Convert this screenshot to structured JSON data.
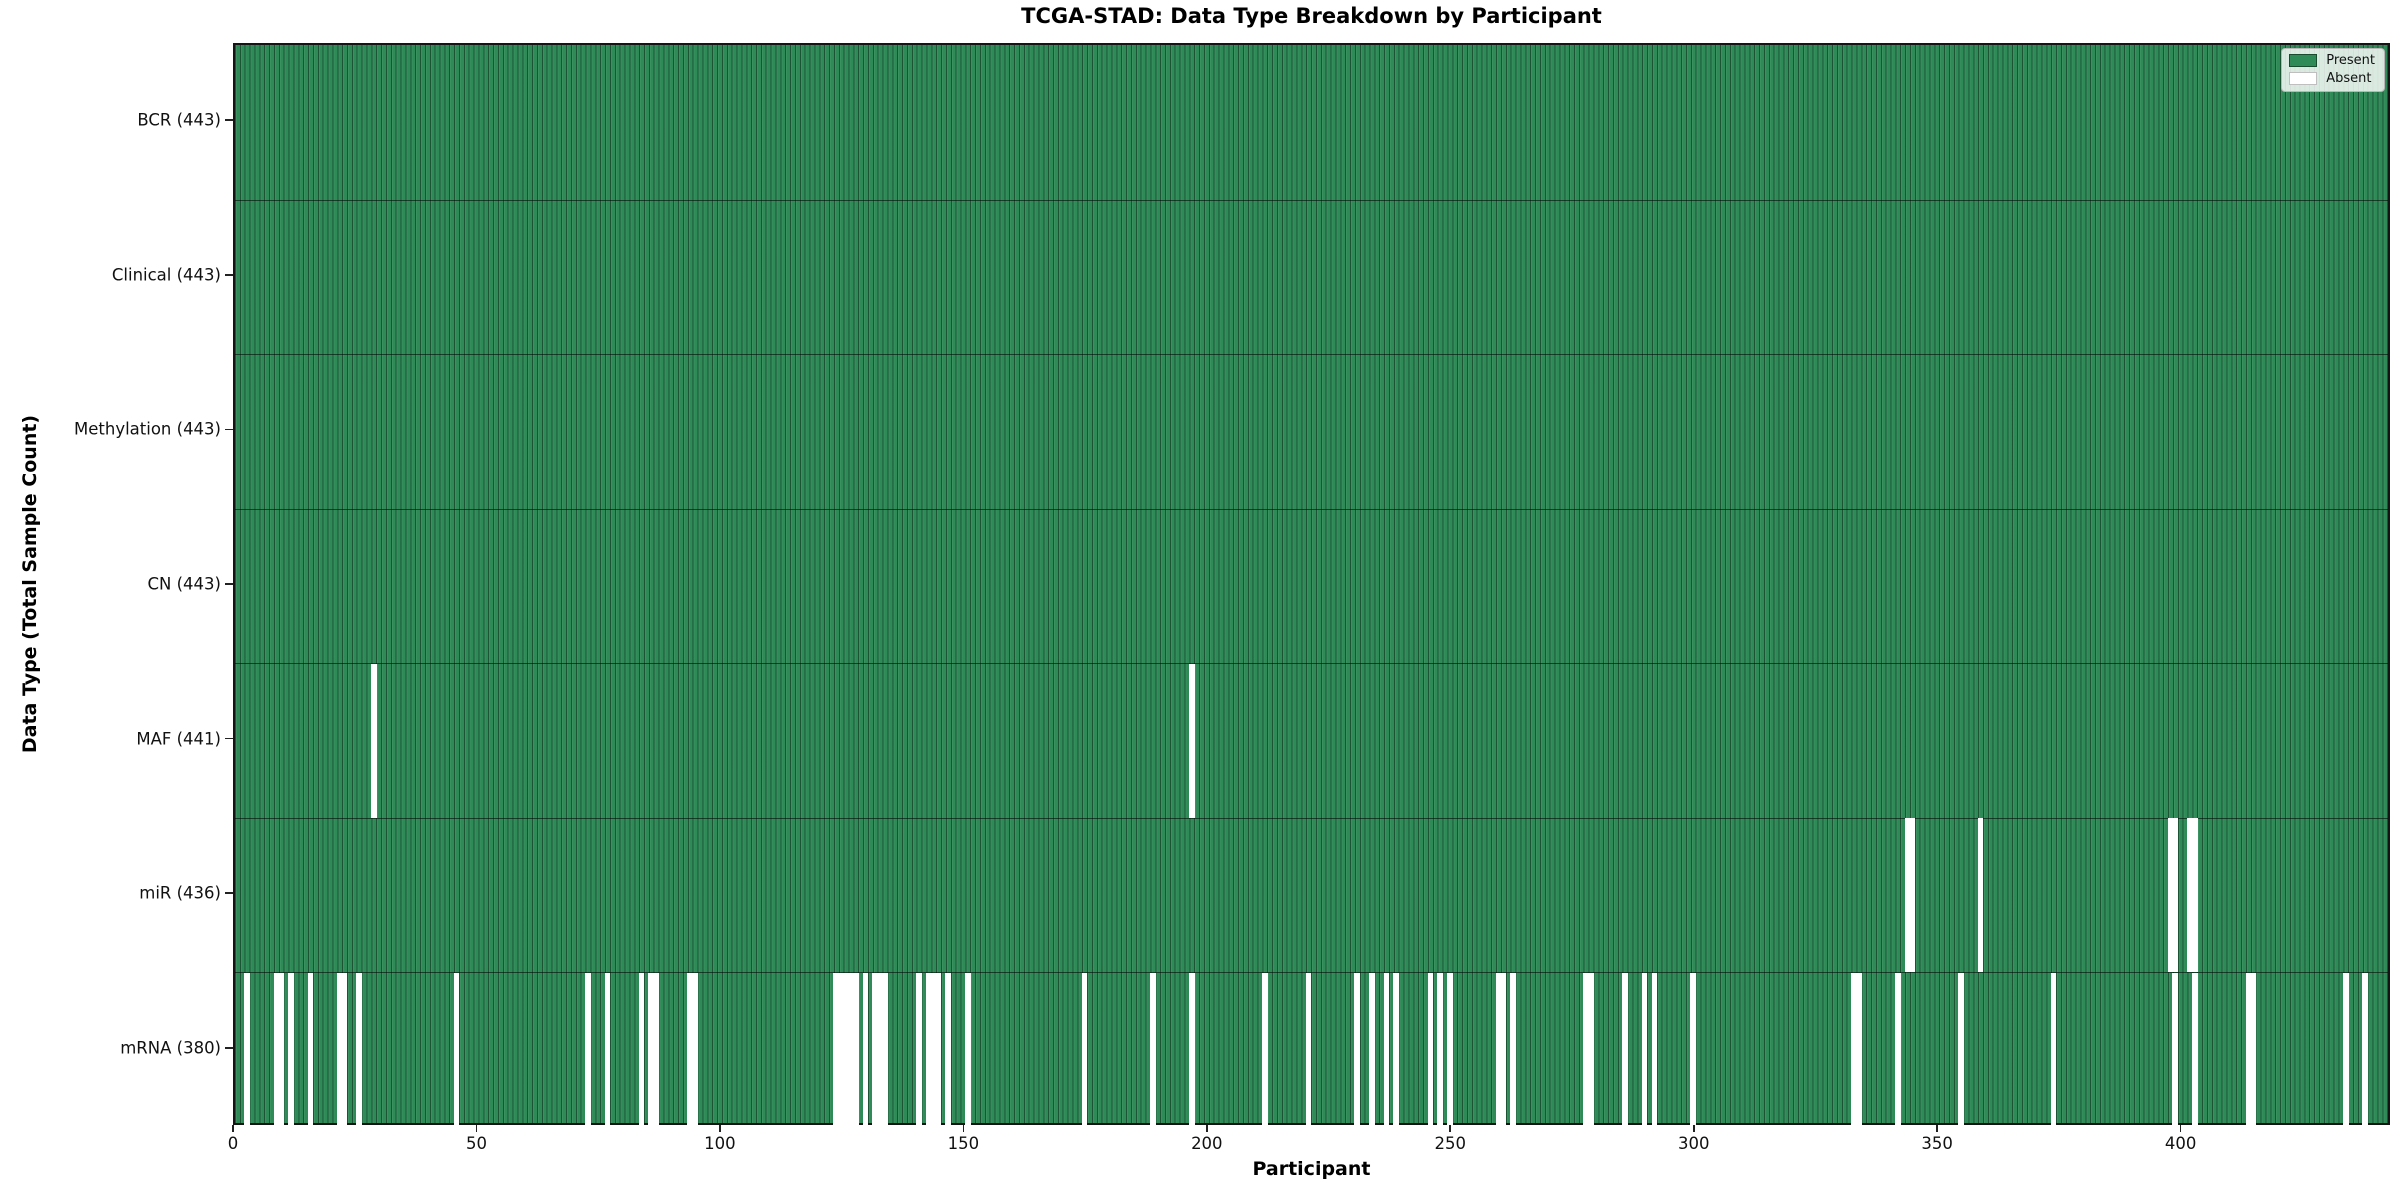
{
  "title": "TCGA-STAD: Data Type Breakdown by Participant",
  "legend": {
    "present_label": "Present",
    "absent_label": "Absent"
  },
  "colors": {
    "present": "#2e8b57",
    "absent": "#ffffff"
  },
  "chart_data": {
    "type": "heatmap",
    "title": "TCGA-STAD: Data Type Breakdown by Participant",
    "xlabel": "Participant",
    "ylabel": "Data Type (Total Sample Count)",
    "x_ticks": [
      0,
      50,
      100,
      150,
      200,
      250,
      300,
      350,
      400
    ],
    "x_range": [
      0,
      443
    ],
    "n_participants": 443,
    "grid": false,
    "legend_position": "upper right",
    "legend_entries": [
      {
        "label": "Present",
        "color": "#2e8b57"
      },
      {
        "label": "Absent",
        "color": "#ffffff"
      }
    ],
    "rows": [
      {
        "label": "BCR (443)",
        "data_type": "BCR",
        "count": 443,
        "absent_participants": []
      },
      {
        "label": "Clinical (443)",
        "data_type": "Clinical",
        "count": 443,
        "absent_participants": []
      },
      {
        "label": "Methylation (443)",
        "data_type": "Methylation",
        "count": 443,
        "absent_participants": []
      },
      {
        "label": "CN (443)",
        "data_type": "CN",
        "count": 443,
        "absent_participants": []
      },
      {
        "label": "MAF (441)",
        "data_type": "MAF",
        "count": 441,
        "absent_participants": [
          28,
          196
        ]
      },
      {
        "label": "miR (436)",
        "data_type": "miR",
        "count": 436,
        "absent_participants": [
          343,
          344,
          358,
          397,
          398,
          401,
          402
        ]
      },
      {
        "label": "mRNA (380)",
        "data_type": "mRNA",
        "count": 380,
        "absent_participants": [
          2,
          8,
          9,
          11,
          15,
          21,
          22,
          25,
          45,
          72,
          76,
          83,
          85,
          86,
          93,
          94,
          123,
          124,
          125,
          126,
          127,
          129,
          131,
          132,
          133,
          140,
          142,
          143,
          144,
          146,
          150,
          174,
          188,
          196,
          211,
          220,
          230,
          233,
          236,
          238,
          245,
          247,
          249,
          259,
          260,
          262,
          277,
          278,
          285,
          289,
          291,
          299,
          332,
          333,
          341,
          354,
          373,
          398,
          402,
          413,
          414,
          433,
          437
        ]
      }
    ]
  }
}
